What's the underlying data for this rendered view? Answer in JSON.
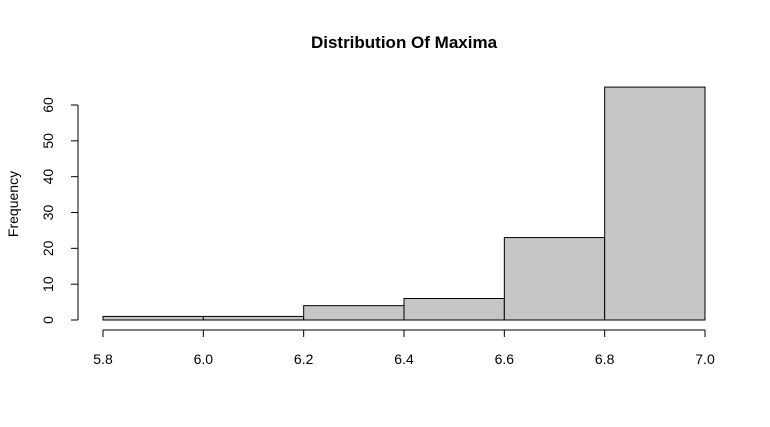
{
  "chart_data": {
    "type": "bar",
    "title": "Distribution Of Maxima",
    "xlabel": "",
    "ylabel": "Frequency",
    "bins": [
      {
        "from": 5.8,
        "to": 6.0,
        "count": 1
      },
      {
        "from": 6.0,
        "to": 6.2,
        "count": 1
      },
      {
        "from": 6.2,
        "to": 6.4,
        "count": 4
      },
      {
        "from": 6.4,
        "to": 6.6,
        "count": 6
      },
      {
        "from": 6.6,
        "to": 6.8,
        "count": 23
      },
      {
        "from": 6.8,
        "to": 7.0,
        "count": 65
      }
    ],
    "xlim": [
      5.8,
      7.0
    ],
    "ylim": [
      0,
      65
    ],
    "x_ticks": [
      "5.8",
      "6.0",
      "6.2",
      "6.4",
      "6.6",
      "6.8",
      "7.0"
    ],
    "y_ticks": [
      "0",
      "10",
      "20",
      "30",
      "40",
      "50",
      "60"
    ],
    "bar_fill": "#c6c6c6",
    "bar_stroke": "#000000",
    "grid": false,
    "legend": "none"
  }
}
